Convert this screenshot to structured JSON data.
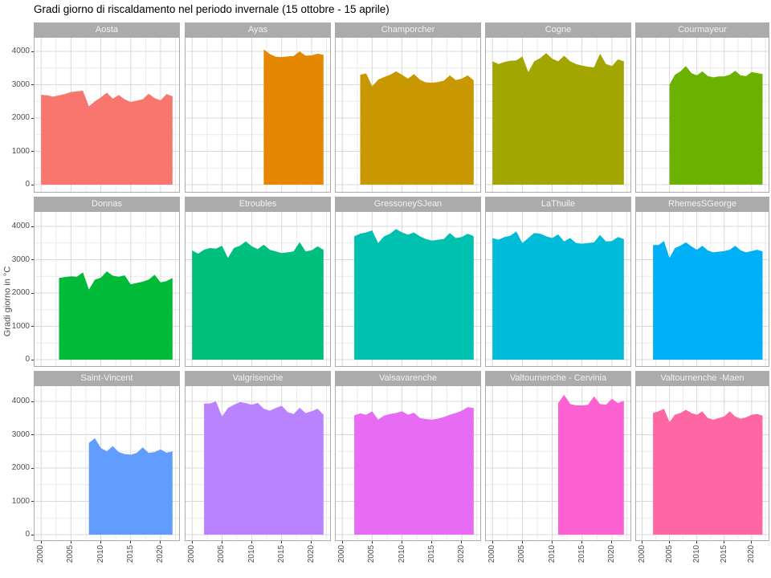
{
  "title": "Gradi giorno di riscaldamento nel periodo invernale (15 ottobre - 15 aprile)",
  "ylabel": "Gradi giorno in °C",
  "theme": {
    "strip_bg": "#ABABAB",
    "strip_text": "#F2F2F2",
    "panel_border": "#ABABAB",
    "grid_major": "#D8D8D8",
    "grid_minor": "#EAEAEA",
    "tick_color": "#333333",
    "tick_label_color": "#4D4D4D"
  },
  "chart_data": {
    "type": "area",
    "title": "Gradi giorno di riscaldamento nel periodo invernale (15 ottobre - 15 aprile)",
    "xlabel": "",
    "ylabel": "Gradi giorno in °C",
    "x_ticks": [
      2000,
      2005,
      2010,
      2015,
      2020
    ],
    "x_minor_ticks": [
      2002.5,
      2007.5,
      2012.5,
      2017.5,
      2022.5
    ],
    "y_ticks": [
      0,
      1000,
      2000,
      3000,
      4000
    ],
    "y_minor_ticks": [
      500,
      1500,
      2500,
      3500
    ],
    "x_domain": [
      1998.9,
      2023.1
    ],
    "y_domain": [
      -190,
      4430
    ],
    "grid": true,
    "legend": "none",
    "facet_layout": {
      "rows": 3,
      "cols": 5
    },
    "facets": [
      {
        "name": "Aosta",
        "color": "#F8766D",
        "start_year": 2000,
        "end_year": 2022,
        "values": [
          2700,
          2680,
          2640,
          2680,
          2720,
          2780,
          2800,
          2820,
          2350,
          2500,
          2620,
          2760,
          2580,
          2690,
          2560,
          2480,
          2520,
          2560,
          2730,
          2600,
          2530,
          2720,
          2650
        ]
      },
      {
        "name": "Ayas",
        "color": "#E58700",
        "start_year": 2012,
        "end_year": 2022,
        "values": [
          4060,
          3920,
          3840,
          3830,
          3850,
          3860,
          4000,
          3870,
          3880,
          3930,
          3900
        ]
      },
      {
        "name": "Champorcher",
        "color": "#C99800",
        "start_year": 2003,
        "end_year": 2022,
        "values": [
          3300,
          3340,
          2950,
          3150,
          3230,
          3300,
          3400,
          3300,
          3180,
          3320,
          3150,
          3070,
          3060,
          3080,
          3120,
          3280,
          3140,
          3180,
          3280,
          3130
        ]
      },
      {
        "name": "Cogne",
        "color": "#A3A500",
        "start_year": 2000,
        "end_year": 2022,
        "values": [
          3700,
          3620,
          3680,
          3720,
          3730,
          3850,
          3380,
          3700,
          3800,
          3950,
          3780,
          3700,
          3870,
          3700,
          3620,
          3570,
          3540,
          3520,
          3930,
          3620,
          3560,
          3760,
          3700
        ]
      },
      {
        "name": "Courmayeur",
        "color": "#6BB100",
        "start_year": 2005,
        "end_year": 2022,
        "values": [
          3000,
          3300,
          3400,
          3560,
          3350,
          3280,
          3400,
          3260,
          3220,
          3250,
          3250,
          3300,
          3420,
          3280,
          3260,
          3380,
          3350,
          3320
        ]
      },
      {
        "name": "Donnas",
        "color": "#00BA38",
        "start_year": 2003,
        "end_year": 2022,
        "values": [
          2450,
          2480,
          2500,
          2490,
          2620,
          2100,
          2400,
          2460,
          2650,
          2520,
          2490,
          2530,
          2260,
          2300,
          2340,
          2400,
          2550,
          2320,
          2360,
          2450
        ]
      },
      {
        "name": "Etroubles",
        "color": "#00BF7D",
        "start_year": 2000,
        "end_year": 2022,
        "values": [
          3280,
          3180,
          3300,
          3350,
          3330,
          3420,
          3050,
          3350,
          3420,
          3550,
          3400,
          3320,
          3450,
          3300,
          3250,
          3200,
          3220,
          3250,
          3530,
          3250,
          3280,
          3400,
          3300
        ]
      },
      {
        "name": "GressoneySJean",
        "color": "#00C0AF",
        "start_year": 2002,
        "end_year": 2022,
        "values": [
          3700,
          3780,
          3820,
          3880,
          3500,
          3700,
          3780,
          3920,
          3820,
          3750,
          3820,
          3700,
          3620,
          3570,
          3600,
          3620,
          3800,
          3650,
          3680,
          3780,
          3700
        ]
      },
      {
        "name": "LaThuile",
        "color": "#00BCD8",
        "start_year": 2000,
        "end_year": 2022,
        "values": [
          3650,
          3600,
          3680,
          3720,
          3850,
          3500,
          3650,
          3800,
          3780,
          3700,
          3650,
          3760,
          3550,
          3650,
          3500,
          3480,
          3500,
          3520,
          3740,
          3550,
          3560,
          3680,
          3620
        ]
      },
      {
        "name": "RhemesSGeorge",
        "color": "#00B0F6",
        "start_year": 2002,
        "end_year": 2022,
        "values": [
          3440,
          3440,
          3560,
          3050,
          3350,
          3420,
          3520,
          3400,
          3300,
          3420,
          3280,
          3220,
          3240,
          3260,
          3300,
          3420,
          3280,
          3220,
          3260,
          3300,
          3250
        ]
      },
      {
        "name": "Saint-Vincent",
        "color": "#619CFF",
        "start_year": 2008,
        "end_year": 2022,
        "values": [
          2750,
          2900,
          2600,
          2500,
          2660,
          2480,
          2420,
          2400,
          2450,
          2620,
          2450,
          2480,
          2560,
          2460,
          2500
        ]
      },
      {
        "name": "Valgrisenche",
        "color": "#B983FF",
        "start_year": 2002,
        "end_year": 2022,
        "values": [
          3930,
          3940,
          4000,
          3550,
          3800,
          3900,
          3980,
          3950,
          3900,
          3960,
          3780,
          3720,
          3800,
          3870,
          3680,
          3620,
          3810,
          3650,
          3700,
          3780,
          3600
        ]
      },
      {
        "name": "Valsavarenche",
        "color": "#E76BF3",
        "start_year": 2002,
        "end_year": 2022,
        "values": [
          3580,
          3640,
          3600,
          3700,
          3450,
          3570,
          3620,
          3650,
          3700,
          3600,
          3660,
          3500,
          3470,
          3450,
          3480,
          3530,
          3600,
          3650,
          3720,
          3830,
          3800
        ]
      },
      {
        "name": "Valtournenche - Cervinia",
        "color": "#FD61D1",
        "start_year": 2011,
        "end_year": 2022,
        "values": [
          3950,
          4200,
          3920,
          3880,
          3880,
          3900,
          4150,
          3920,
          3900,
          4080,
          3950,
          4020
        ]
      },
      {
        "name": "Valtournenche -Maen",
        "color": "#FF67A4",
        "start_year": 2002,
        "end_year": 2022,
        "values": [
          3650,
          3700,
          3780,
          3380,
          3600,
          3650,
          3750,
          3650,
          3600,
          3700,
          3500,
          3450,
          3500,
          3550,
          3700,
          3550,
          3480,
          3520,
          3600,
          3620,
          3570
        ]
      }
    ]
  }
}
